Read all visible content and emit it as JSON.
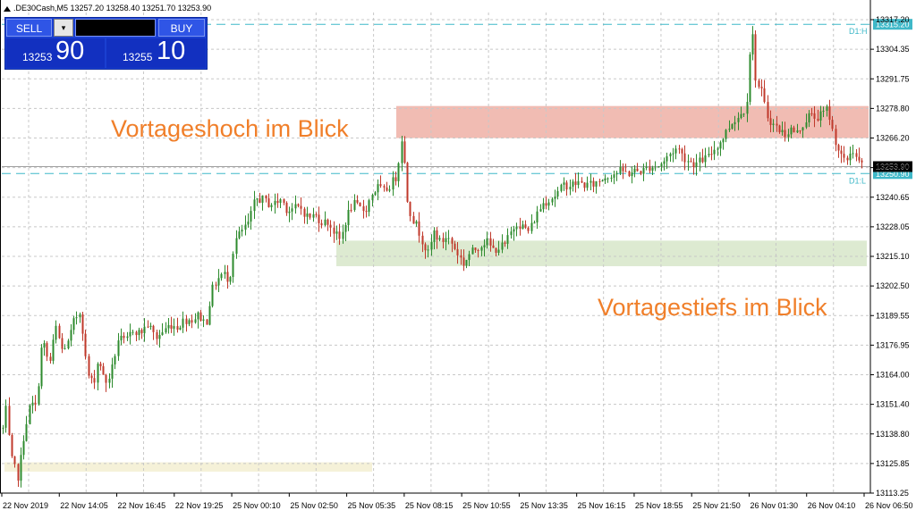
{
  "header": {
    "symbol_line": ".DE30Cash,M5  13257.20 13258.40 13251.70 13253.90"
  },
  "trade_panel": {
    "sell_label": "SELL",
    "buy_label": "BUY",
    "dropdown_icon": "chevron-down-icon",
    "sell_price_small": "13253",
    "sell_price_big": "90",
    "buy_price_small": "13255",
    "buy_price_big": "10"
  },
  "annotations": {
    "high_text": "Vortageshoch im Blick",
    "low_text": "Vortagestiefs im Blick",
    "text_color": "#f07f2a"
  },
  "colors": {
    "bull": "#2e8b2e",
    "bear": "#c0392b",
    "grid": "#c8c8c8",
    "level_line": "#3fb8c8",
    "high_zone": "#efb0a6",
    "low_zone": "#d9e8cc",
    "old_zone": "#f5f1d8",
    "price_box": "#3fb8c8"
  },
  "chart_data": {
    "type": "candlestick",
    "symbol": ".DE30Cash",
    "timeframe": "M5",
    "ohlc_current": {
      "open": 13257.2,
      "high": 13258.4,
      "low": 13251.7,
      "close": 13253.9
    },
    "y_ticks": [
      "13317.20",
      "13304.35",
      "13291.75",
      "13278.80",
      "13266.20",
      "13253.90",
      "13240.65",
      "13228.05",
      "13215.10",
      "13202.50",
      "13189.55",
      "13176.95",
      "13164.00",
      "13151.40",
      "13138.80",
      "13125.85",
      "13113.25"
    ],
    "ylim": [
      13113.25,
      13317.2
    ],
    "x_ticks": [
      "22 Nov 2019",
      "22 Nov 14:05",
      "22 Nov 16:45",
      "22 Nov 19:25",
      "25 Nov 00:10",
      "25 Nov 02:50",
      "25 Nov 05:35",
      "25 Nov 08:15",
      "25 Nov 10:55",
      "25 Nov 13:35",
      "25 Nov 16:15",
      "25 Nov 18:55",
      "25 Nov 21:50",
      "26 Nov 01:30",
      "26 Nov 04:10",
      "26 Nov 06:50"
    ],
    "levels": [
      {
        "label": "D1:H",
        "value": 13315.2,
        "price_tag": "13315.20"
      },
      {
        "label": "D1:L",
        "value": 13250.9,
        "price_tag": "13250.90"
      }
    ],
    "current_price_tag": "13253.90",
    "zones": [
      {
        "name": "Vortageshoch im Blick",
        "from": 13266.2,
        "to": 13280.0
      },
      {
        "name": "Vortagestiefs im Blick",
        "from": 13211.0,
        "to": 13222.0
      },
      {
        "name": "old-low-zone",
        "from": 13122.5,
        "to": 13126.5
      }
    ],
    "price_path": [
      [
        0,
        13132
      ],
      [
        6,
        13150
      ],
      [
        12,
        13128
      ],
      [
        20,
        13120
      ],
      [
        27,
        13140
      ],
      [
        34,
        13152
      ],
      [
        40,
        13150
      ],
      [
        47,
        13180
      ],
      [
        55,
        13168
      ],
      [
        62,
        13185
      ],
      [
        69,
        13175
      ],
      [
        76,
        13178
      ],
      [
        83,
        13188
      ],
      [
        90,
        13192
      ],
      [
        97,
        13165
      ],
      [
        104,
        13160
      ],
      [
        110,
        13172
      ],
      [
        117,
        13160
      ],
      [
        124,
        13165
      ],
      [
        132,
        13180
      ],
      [
        140,
        13178
      ],
      [
        148,
        13184
      ],
      [
        156,
        13182
      ],
      [
        165,
        13186
      ],
      [
        174,
        13180
      ],
      [
        182,
        13183
      ],
      [
        190,
        13186
      ],
      [
        198,
        13185
      ],
      [
        206,
        13188
      ],
      [
        214,
        13188
      ],
      [
        222,
        13190
      ],
      [
        230,
        13186
      ],
      [
        236,
        13200
      ],
      [
        242,
        13205
      ],
      [
        249,
        13208
      ],
      [
        256,
        13205
      ],
      [
        262,
        13222
      ],
      [
        270,
        13226
      ],
      [
        278,
        13230
      ],
      [
        285,
        13240
      ],
      [
        292,
        13240
      ],
      [
        300,
        13238
      ],
      [
        307,
        13238
      ],
      [
        314,
        13240
      ],
      [
        321,
        13235
      ],
      [
        328,
        13236
      ],
      [
        336,
        13236
      ],
      [
        344,
        13232
      ],
      [
        352,
        13233
      ],
      [
        360,
        13230
      ],
      [
        367,
        13230
      ],
      [
        374,
        13225
      ],
      [
        380,
        13222
      ],
      [
        387,
        13232
      ],
      [
        394,
        13238
      ],
      [
        401,
        13236
      ],
      [
        408,
        13235
      ],
      [
        415,
        13242
      ],
      [
        422,
        13245
      ],
      [
        429,
        13243
      ],
      [
        436,
        13246
      ],
      [
        443,
        13250
      ],
      [
        449,
        13268
      ],
      [
        455,
        13240
      ],
      [
        460,
        13232
      ],
      [
        466,
        13228
      ],
      [
        472,
        13222
      ],
      [
        478,
        13216
      ],
      [
        485,
        13226
      ],
      [
        492,
        13221
      ],
      [
        499,
        13224
      ],
      [
        506,
        13220
      ],
      [
        512,
        13216
      ],
      [
        518,
        13212
      ],
      [
        524,
        13216
      ],
      [
        530,
        13218
      ],
      [
        536,
        13220
      ],
      [
        543,
        13222
      ],
      [
        550,
        13218
      ],
      [
        557,
        13219
      ],
      [
        564,
        13220
      ],
      [
        570,
        13225
      ],
      [
        577,
        13230
      ],
      [
        584,
        13228
      ],
      [
        591,
        13226
      ],
      [
        598,
        13232
      ],
      [
        606,
        13238
      ],
      [
        614,
        13240
      ],
      [
        622,
        13242
      ],
      [
        630,
        13246
      ],
      [
        638,
        13246
      ],
      [
        646,
        13247
      ],
      [
        654,
        13246
      ],
      [
        662,
        13246
      ],
      [
        670,
        13248
      ],
      [
        678,
        13250
      ],
      [
        686,
        13251
      ],
      [
        694,
        13252
      ],
      [
        702,
        13251
      ],
      [
        710,
        13252
      ],
      [
        718,
        13252
      ],
      [
        726,
        13254
      ],
      [
        734,
        13254
      ],
      [
        742,
        13256
      ],
      [
        750,
        13260
      ],
      [
        757,
        13262
      ],
      [
        764,
        13258
      ],
      [
        771,
        13256
      ],
      [
        778,
        13255
      ],
      [
        785,
        13257
      ],
      [
        792,
        13258
      ],
      [
        799,
        13262
      ],
      [
        806,
        13265
      ],
      [
        813,
        13270
      ],
      [
        820,
        13274
      ],
      [
        827,
        13276
      ],
      [
        834,
        13280
      ],
      [
        840,
        13316
      ],
      [
        845,
        13290
      ],
      [
        851,
        13286
      ],
      [
        857,
        13276
      ],
      [
        864,
        13272
      ],
      [
        870,
        13270
      ],
      [
        877,
        13268
      ],
      [
        884,
        13270
      ],
      [
        890,
        13268
      ],
      [
        897,
        13272
      ],
      [
        904,
        13276
      ],
      [
        911,
        13275
      ],
      [
        918,
        13276
      ],
      [
        925,
        13279
      ],
      [
        931,
        13268
      ],
      [
        938,
        13260
      ],
      [
        945,
        13255
      ],
      [
        952,
        13262
      ],
      [
        959,
        13256
      ],
      [
        965,
        13254
      ]
    ]
  }
}
